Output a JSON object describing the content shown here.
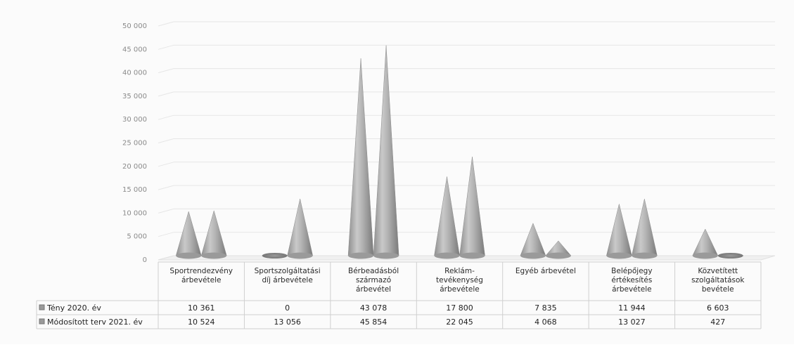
{
  "chart_data": {
    "type": "bar",
    "style": "3d-cone",
    "categories": [
      [
        "Sportrendezvény",
        "árbevétele"
      ],
      [
        "Sportszolgáltatási",
        "díj árbevétele"
      ],
      [
        "Bérbeadásból",
        "származó",
        "árbevétel"
      ],
      [
        "Reklám-",
        "tevékenység",
        "árbevétele"
      ],
      [
        "Egyéb árbevétel"
      ],
      [
        "Belépőjegy",
        "értékesítés",
        "árbevétele"
      ],
      [
        "Közvetített",
        "szolgáltatások",
        "bevétele"
      ]
    ],
    "series": [
      {
        "name": "Tény 2020. év",
        "values": [
          10361,
          0,
          43078,
          17800,
          7835,
          11944,
          6603
        ],
        "labels": [
          "10 361",
          "0",
          "43 078",
          "17 800",
          "7 835",
          "11 944",
          "6 603"
        ]
      },
      {
        "name": "Módosított terv 2021. év",
        "values": [
          10524,
          13056,
          45854,
          22045,
          4068,
          13027,
          427
        ],
        "labels": [
          "10 524",
          "13 056",
          "45 854",
          "22 045",
          "4 068",
          "13 027",
          "427"
        ]
      }
    ],
    "yticks": [
      "0",
      "5 000",
      "10 000",
      "15 000",
      "20 000",
      "25 000",
      "30 000",
      "35 000",
      "40 000",
      "45 000",
      "50 000"
    ],
    "ylim": [
      0,
      50000
    ],
    "grid": true,
    "legend": "data-table",
    "colors": {
      "cone": "#a8a8a8",
      "grid": "#e6e6e6",
      "table_border": "#cfcfcf"
    }
  }
}
